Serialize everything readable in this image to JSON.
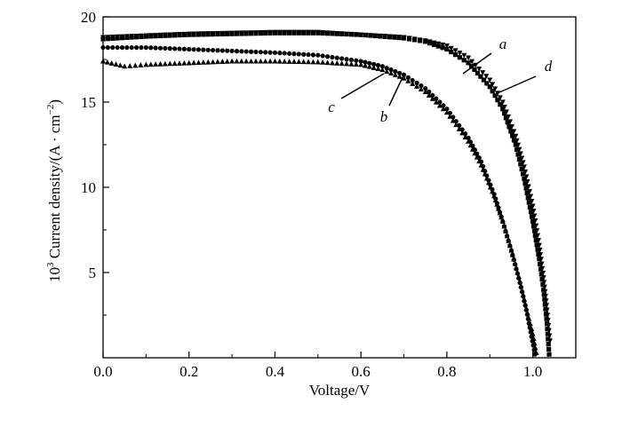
{
  "chart_data": {
    "type": "scatter",
    "xlabel": "Voltage/V",
    "ylabel_prefix": "10",
    "ylabel_exp": "3",
    "ylabel_main": " Current density/(A · cm",
    "ylabel_unit_exp": "−2",
    "ylabel_close": ")",
    "xlim": [
      0.0,
      1.1
    ],
    "ylim": [
      0,
      20
    ],
    "x_ticks": [
      "0.0",
      "0.2",
      "0.4",
      "0.6",
      "0.8",
      "1.0"
    ],
    "y_ticks": [
      "5",
      "10",
      "15",
      "20"
    ],
    "grid": false,
    "series": [
      {
        "name": "a",
        "marker": "square",
        "points": [
          [
            0.0,
            18.7
          ],
          [
            0.1,
            18.85
          ],
          [
            0.2,
            18.95
          ],
          [
            0.3,
            19.0
          ],
          [
            0.4,
            19.05
          ],
          [
            0.5,
            19.05
          ],
          [
            0.6,
            18.95
          ],
          [
            0.7,
            18.75
          ],
          [
            0.75,
            18.55
          ],
          [
            0.8,
            18.1
          ],
          [
            0.85,
            17.3
          ],
          [
            0.9,
            15.9
          ],
          [
            0.93,
            14.6
          ],
          [
            0.96,
            12.5
          ],
          [
            0.98,
            10.5
          ],
          [
            1.0,
            8.0
          ],
          [
            1.015,
            5.8
          ],
          [
            1.025,
            4.0
          ],
          [
            1.033,
            2.0
          ],
          [
            1.038,
            0.2
          ]
        ]
      },
      {
        "name": "b",
        "marker": "circle",
        "points": [
          [
            0.0,
            18.2
          ],
          [
            0.1,
            18.2
          ],
          [
            0.2,
            18.1
          ],
          [
            0.3,
            18.0
          ],
          [
            0.4,
            17.9
          ],
          [
            0.5,
            17.75
          ],
          [
            0.6,
            17.4
          ],
          [
            0.65,
            17.1
          ],
          [
            0.7,
            16.6
          ],
          [
            0.75,
            15.8
          ],
          [
            0.8,
            14.6
          ],
          [
            0.85,
            12.9
          ],
          [
            0.88,
            11.5
          ],
          [
            0.91,
            9.6
          ],
          [
            0.93,
            8.0
          ],
          [
            0.95,
            6.3
          ],
          [
            0.97,
            4.4
          ],
          [
            0.985,
            2.8
          ],
          [
            0.995,
            1.5
          ],
          [
            1.005,
            0.2
          ]
        ]
      },
      {
        "name": "c",
        "marker": "triangle-up",
        "points": [
          [
            0.0,
            17.4
          ],
          [
            0.05,
            17.1
          ],
          [
            0.1,
            17.2
          ],
          [
            0.2,
            17.3
          ],
          [
            0.3,
            17.4
          ],
          [
            0.4,
            17.4
          ],
          [
            0.5,
            17.35
          ],
          [
            0.6,
            17.2
          ],
          [
            0.65,
            16.9
          ],
          [
            0.7,
            16.4
          ],
          [
            0.75,
            15.6
          ],
          [
            0.8,
            14.4
          ],
          [
            0.85,
            12.7
          ],
          [
            0.88,
            11.3
          ],
          [
            0.91,
            9.5
          ],
          [
            0.93,
            8.0
          ],
          [
            0.95,
            6.3
          ],
          [
            0.97,
            4.5
          ],
          [
            0.985,
            2.9
          ],
          [
            1.0,
            1.4
          ],
          [
            1.008,
            0.3
          ]
        ]
      },
      {
        "name": "d",
        "marker": "triangle-down",
        "points": [
          [
            0.0,
            18.8
          ],
          [
            0.1,
            18.9
          ],
          [
            0.2,
            19.0
          ],
          [
            0.3,
            19.05
          ],
          [
            0.4,
            19.1
          ],
          [
            0.5,
            19.1
          ],
          [
            0.6,
            18.95
          ],
          [
            0.7,
            18.8
          ],
          [
            0.75,
            18.6
          ],
          [
            0.8,
            18.3
          ],
          [
            0.85,
            17.6
          ],
          [
            0.9,
            16.3
          ],
          [
            0.93,
            15.0
          ],
          [
            0.96,
            13.0
          ],
          [
            0.98,
            11.2
          ],
          [
            1.0,
            8.9
          ],
          [
            1.015,
            6.6
          ],
          [
            1.025,
            4.7
          ],
          [
            1.033,
            2.8
          ],
          [
            1.04,
            1.0
          ]
        ]
      }
    ],
    "annotations": [
      {
        "text": "a",
        "series": "a"
      },
      {
        "text": "b",
        "series": "b"
      },
      {
        "text": "c",
        "series": "c"
      },
      {
        "text": "d",
        "series": "d"
      }
    ]
  }
}
